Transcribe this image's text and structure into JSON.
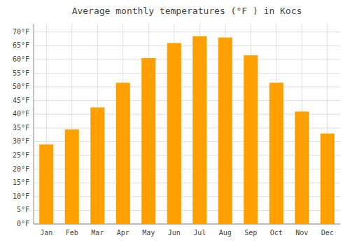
{
  "chart_data": {
    "type": "bar",
    "title": "Average monthly temperatures (°F ) in Kocs",
    "categories": [
      "Jan",
      "Feb",
      "Mar",
      "Apr",
      "May",
      "Jun",
      "Jul",
      "Aug",
      "Sep",
      "Oct",
      "Nov",
      "Dec"
    ],
    "values": [
      29,
      34.5,
      42.5,
      51.5,
      60.5,
      66,
      68.5,
      68,
      61.5,
      51.5,
      41,
      33
    ],
    "color": "#FFA000",
    "ylim": [
      0,
      73
    ],
    "yticks": [
      {
        "value": 0,
        "label": "0°F"
      },
      {
        "value": 5,
        "label": "5°F"
      },
      {
        "value": 10,
        "label": "10°F"
      },
      {
        "value": 15,
        "label": "15°F"
      },
      {
        "value": 20,
        "label": "20°F"
      },
      {
        "value": 25,
        "label": "25°F"
      },
      {
        "value": 30,
        "label": "30°F"
      },
      {
        "value": 35,
        "label": "35°F"
      },
      {
        "value": 40,
        "label": "40°F"
      },
      {
        "value": 45,
        "label": "45°F"
      },
      {
        "value": 50,
        "label": "50°F"
      },
      {
        "value": 55,
        "label": "55°F"
      },
      {
        "value": 60,
        "label": "60°F"
      },
      {
        "value": 65,
        "label": "65°F"
      },
      {
        "value": 70,
        "label": "70°F"
      }
    ],
    "grid": true
  }
}
